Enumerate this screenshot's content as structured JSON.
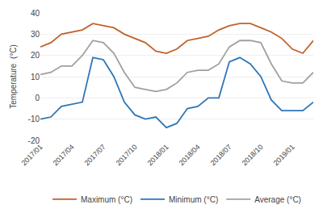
{
  "chart_data": {
    "type": "line",
    "ylabel": "Temperature  (°C)",
    "categories": [
      "2017/01",
      null,
      null,
      "2017/04",
      null,
      null,
      "2017/07",
      null,
      null,
      "2017/10",
      null,
      null,
      "2018/01",
      null,
      null,
      "2018/04",
      null,
      null,
      "2018/07",
      null,
      null,
      "2018/10",
      null,
      null,
      "2019/01",
      null,
      null
    ],
    "series": [
      {
        "name": "Maximum (°C)",
        "color": "#C0622B",
        "values": [
          24,
          26,
          30,
          31,
          32,
          35,
          34,
          33,
          30,
          28,
          26,
          22,
          21,
          23,
          27,
          28,
          29,
          32,
          34,
          35,
          35,
          33,
          31,
          28,
          23,
          21,
          27
        ]
      },
      {
        "name": "Minimum (°C)",
        "color": "#2E75B6",
        "values": [
          -10,
          -9,
          -4,
          -3,
          -2,
          19,
          18,
          10,
          -2,
          -8,
          -10,
          -9,
          -14,
          -12,
          -5,
          -4,
          0,
          0,
          17,
          19,
          16,
          10,
          -1,
          -6,
          -6,
          -6,
          -2
        ]
      },
      {
        "name": "Average (°C)",
        "color": "#A0A0A0",
        "values": [
          11,
          12,
          15,
          15,
          20,
          27,
          26,
          21,
          12,
          5,
          4,
          3,
          4,
          7,
          12,
          13,
          13,
          16,
          24,
          27,
          27,
          26,
          16,
          8,
          7,
          7,
          12
        ]
      }
    ],
    "ylim": [
      -20,
      40
    ],
    "yticks": [
      -20,
      -10,
      0,
      10,
      20,
      30,
      40
    ],
    "grid": true,
    "legend": "bottom"
  }
}
